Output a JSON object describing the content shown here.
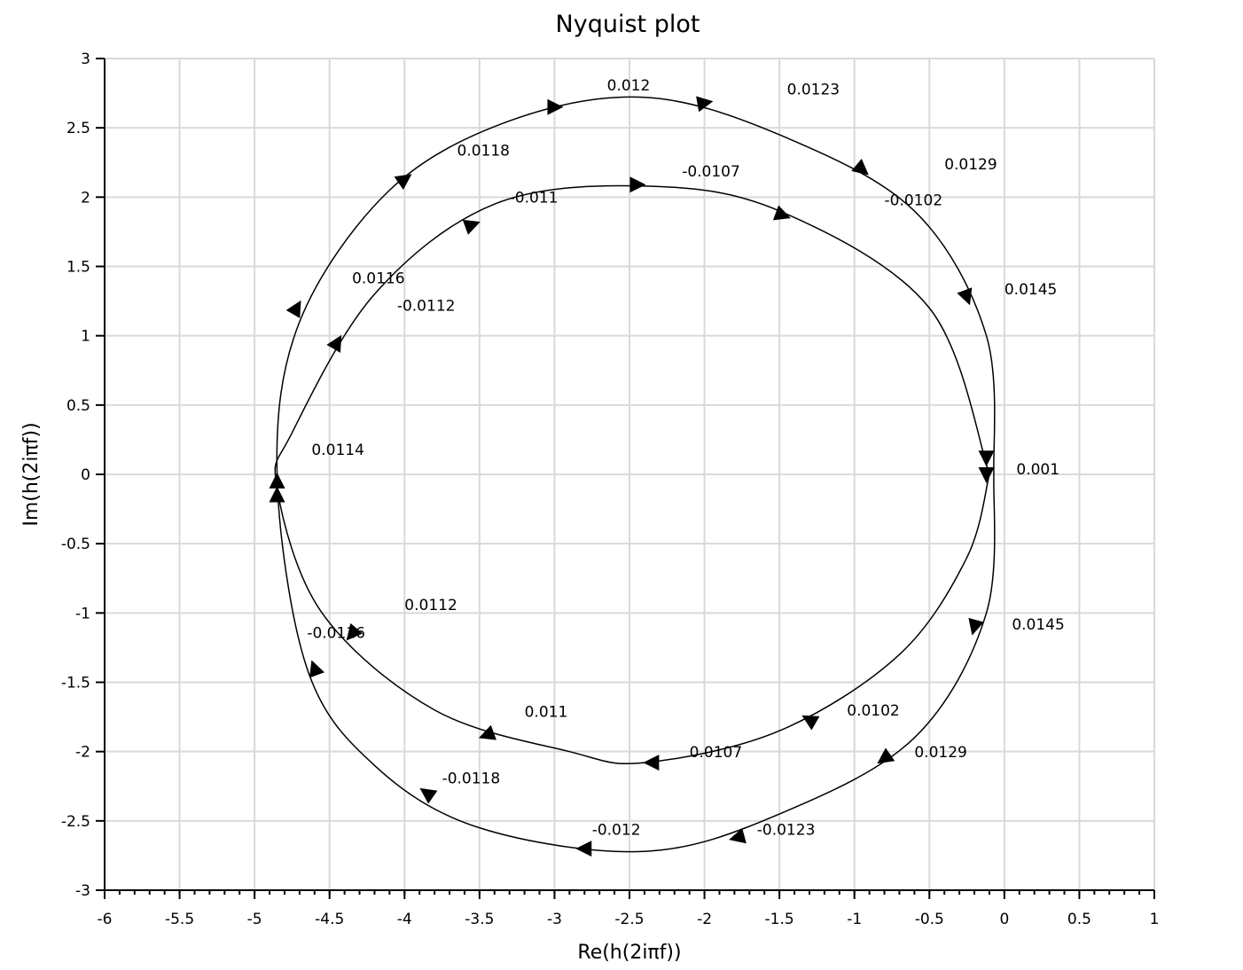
{
  "chart_data": {
    "type": "line",
    "title": "Nyquist plot",
    "xlabel": "Re(h(2iπf))",
    "ylabel": "Im(h(2iπf))",
    "xlim": [
      -6,
      1
    ],
    "ylim": [
      -3,
      3
    ],
    "x_ticks": [
      "-6",
      "-5.5",
      "-5",
      "-4.5",
      "-4",
      "-3.5",
      "-3",
      "-2.5",
      "-2",
      "-1.5",
      "-1",
      "-0.5",
      "0",
      "0.5",
      "1"
    ],
    "y_ticks": [
      "3",
      "2.5",
      "2",
      "1.5",
      "1",
      "0.5",
      "0",
      "-0.5",
      "-1",
      "-1.5",
      "-2",
      "-2.5",
      "-3"
    ],
    "grid": true,
    "series": [
      {
        "points": [
          [
            -0.07,
            0.0
          ],
          [
            -0.12,
            1.0
          ],
          [
            -0.6,
            1.9
          ],
          [
            -1.5,
            2.45
          ],
          [
            -2.4,
            2.72
          ],
          [
            -3.3,
            2.55
          ],
          [
            -4.1,
            2.05
          ],
          [
            -4.7,
            1.1
          ],
          [
            -4.85,
            0.0
          ],
          [
            -4.65,
            -1.4
          ],
          [
            -4.2,
            -2.1
          ],
          [
            -3.5,
            -2.55
          ],
          [
            -2.4,
            -2.72
          ],
          [
            -1.5,
            -2.45
          ],
          [
            -0.6,
            -1.9
          ],
          [
            -0.12,
            -1.0
          ],
          [
            -0.07,
            0.0
          ]
        ]
      },
      {
        "points": [
          [
            -0.1,
            0.0
          ],
          [
            -0.5,
            1.2
          ],
          [
            -1.5,
            1.9
          ],
          [
            -2.4,
            2.08
          ],
          [
            -3.4,
            1.95
          ],
          [
            -4.2,
            1.3
          ],
          [
            -4.75,
            0.3
          ],
          [
            -4.85,
            -0.1
          ],
          [
            -4.55,
            -1.0
          ],
          [
            -3.8,
            -1.7
          ],
          [
            -2.9,
            -2.0
          ],
          [
            -2.4,
            -2.08
          ],
          [
            -1.5,
            -1.85
          ],
          [
            -0.7,
            -1.3
          ],
          [
            -0.25,
            -0.6
          ],
          [
            -0.1,
            0.0
          ]
        ]
      }
    ],
    "freq_labels": [
      {
        "text": "0.012",
        "x": -2.65,
        "y": 2.77
      },
      {
        "text": "0.0123",
        "x": -1.45,
        "y": 2.74
      },
      {
        "text": "0.0118",
        "x": -3.65,
        "y": 2.3
      },
      {
        "text": "0.0129",
        "x": -0.4,
        "y": 2.2
      },
      {
        "text": "-0.0107",
        "x": -2.15,
        "y": 2.15
      },
      {
        "text": "-0.011",
        "x": -3.3,
        "y": 1.96
      },
      {
        "text": "-0.0102",
        "x": -0.8,
        "y": 1.94
      },
      {
        "text": "0.0145",
        "x": 0.0,
        "y": 1.3
      },
      {
        "text": "0.0116",
        "x": -4.35,
        "y": 1.38
      },
      {
        "text": "-0.0112",
        "x": -4.05,
        "y": 1.18
      },
      {
        "text": "0.0114",
        "x": -4.62,
        "y": 0.14
      },
      {
        "text": "0.001",
        "x": 0.08,
        "y": 0.0
      },
      {
        "text": "0.0112",
        "x": -4.0,
        "y": -0.98
      },
      {
        "text": "-0.0116",
        "x": -4.65,
        "y": -1.18
      },
      {
        "text": "0.0145",
        "x": 0.05,
        "y": -1.12
      },
      {
        "text": "0.011",
        "x": -3.2,
        "y": -1.75
      },
      {
        "text": "0.0102",
        "x": -1.05,
        "y": -1.74
      },
      {
        "text": "0.0107",
        "x": -2.1,
        "y": -2.04
      },
      {
        "text": "0.0129",
        "x": -0.6,
        "y": -2.04
      },
      {
        "text": "-0.0118",
        "x": -3.75,
        "y": -2.23
      },
      {
        "text": "-0.012",
        "x": -2.75,
        "y": -2.6
      },
      {
        "text": "-0.0123",
        "x": -1.65,
        "y": -2.6
      }
    ],
    "arrows": [
      {
        "x": -3.0,
        "y": 2.65,
        "dir": 0
      },
      {
        "x": -2.0,
        "y": 2.68,
        "dir": -10
      },
      {
        "x": -0.95,
        "y": 2.2,
        "dir": 40
      },
      {
        "x": -0.25,
        "y": 1.28,
        "dir": 70
      },
      {
        "x": -0.12,
        "y": 0.12,
        "dir": 90
      },
      {
        "x": -0.12,
        "y": 0.0,
        "dir": 90
      },
      {
        "x": -0.2,
        "y": -1.1,
        "dir": 105
      },
      {
        "x": -0.8,
        "y": -2.05,
        "dir": 145
      },
      {
        "x": -1.78,
        "y": -2.62,
        "dir": 165
      },
      {
        "x": -2.8,
        "y": -2.7,
        "dir": 180
      },
      {
        "x": -3.85,
        "y": -2.3,
        "dir": 215
      },
      {
        "x": -4.6,
        "y": -1.4,
        "dir": 250
      },
      {
        "x": -4.85,
        "y": -0.15,
        "dir": 270
      },
      {
        "x": -4.85,
        "y": -0.05,
        "dir": 270
      },
      {
        "x": -4.72,
        "y": 1.2,
        "dir": 300
      },
      {
        "x": -4.0,
        "y": 2.13,
        "dir": 325
      },
      {
        "x": -2.45,
        "y": 2.09,
        "dir": 0
      },
      {
        "x": -3.55,
        "y": 1.8,
        "dir": 340
      },
      {
        "x": -4.45,
        "y": 0.95,
        "dir": 300
      },
      {
        "x": -1.48,
        "y": 1.87,
        "dir": 20
      },
      {
        "x": -4.35,
        "y": -1.15,
        "dir": 130
      },
      {
        "x": -3.45,
        "y": -1.88,
        "dir": 160
      },
      {
        "x": -2.35,
        "y": -2.08,
        "dir": 180
      },
      {
        "x": -1.3,
        "y": -1.77,
        "dir": 210
      }
    ]
  }
}
